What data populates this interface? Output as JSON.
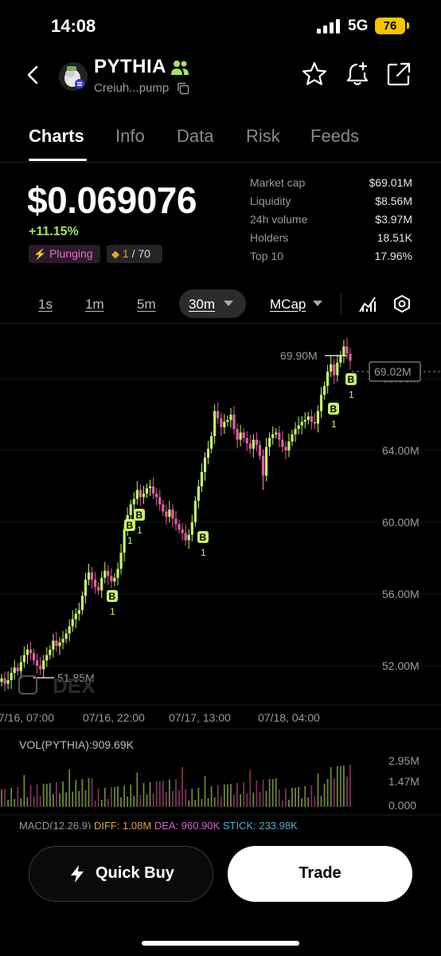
{
  "status_bar": {
    "time": "14:08",
    "network": "5G",
    "battery": "76"
  },
  "header": {
    "token_name": "PYTHIA",
    "token_address": "Creiuh...pump"
  },
  "tabs": [
    {
      "label": "Charts",
      "active": true
    },
    {
      "label": "Info",
      "active": false
    },
    {
      "label": "Data",
      "active": false
    },
    {
      "label": "Risk",
      "active": false
    },
    {
      "label": "Feeds",
      "active": false
    }
  ],
  "price": {
    "value": "$0.069076",
    "change": "+11.15%",
    "badge_trend": "Plunging",
    "holders_rank": "1",
    "holders_total": "/ 70"
  },
  "stats": [
    {
      "label": "Market cap",
      "value": "$69.01M"
    },
    {
      "label": "Liquidity",
      "value": "$8.56M"
    },
    {
      "label": "24h volume",
      "value": "$3.97M"
    },
    {
      "label": "Holders",
      "value": "18.51K"
    },
    {
      "label": "Top 10",
      "value": "17.96%"
    }
  ],
  "timeframes": [
    "1s",
    "1m",
    "5m",
    "30m"
  ],
  "active_timeframe": "30m",
  "metric_select": "MCap",
  "chart_data": {
    "type": "candlestick",
    "y_axis_ticks": [
      "64.00M",
      "60.00M",
      "56.00M",
      "52.00M"
    ],
    "y_axis_partial": "68.00M",
    "x_axis_ticks": [
      "7/16, 07:00",
      "07/16, 22:00",
      "07/17, 13:00",
      "07/18, 04:00"
    ],
    "ylim": [
      50.0,
      70.6
    ],
    "current_value_label": "69.02M",
    "high_label": "69.90M",
    "low_label": "51.85M",
    "watermark": "DEX",
    "buy_marker_letter": "B",
    "buy_marker_count": "1",
    "close": [
      51.3,
      51.0,
      51.2,
      51.6,
      51.9,
      51.7,
      52.2,
      52.6,
      52.9,
      52.7,
      52.3,
      52.0,
      51.8,
      52.3,
      52.6,
      52.9,
      53.4,
      53.1,
      53.3,
      53.5,
      53.8,
      54.2,
      54.6,
      54.9,
      55.1,
      55.9,
      56.8,
      57.2,
      56.8,
      56.4,
      56.2,
      56.9,
      57.3,
      57.0,
      56.7,
      56.9,
      57.4,
      58.3,
      59.6,
      60.4,
      61.0,
      61.3,
      61.8,
      61.4,
      61.6,
      61.9,
      62.0,
      61.6,
      61.4,
      61.0,
      60.6,
      60.3,
      60.7,
      60.2,
      59.9,
      59.6,
      59.4,
      59.0,
      59.3,
      60.0,
      61.2,
      62.0,
      62.8,
      63.6,
      64.1,
      64.8,
      66.2,
      65.8,
      65.3,
      65.6,
      65.7,
      66.0,
      65.2,
      64.6,
      65.0,
      64.7,
      64.4,
      64.1,
      64.6,
      64.3,
      63.7,
      62.6,
      64.2,
      64.7,
      64.9,
      65.0,
      64.6,
      64.2,
      64.0,
      64.5,
      64.9,
      65.2,
      65.4,
      65.6,
      65.7,
      65.9,
      65.6,
      65.5,
      66.2,
      67.1,
      67.6,
      68.4,
      68.8,
      68.2,
      68.9,
      69.3,
      69.8,
      69.4,
      69.0
    ],
    "volume_axis": [
      "2.95M",
      "1.47M",
      "0.000"
    ]
  },
  "indicators": {
    "vol_label": "VOL(PYTHIA):909.69K",
    "macd_label": "MACD(12,26,9)",
    "diff": "DIFF: 1.08M",
    "dea": "DEA: 960.90K",
    "stick": "STICK: 233.98K"
  },
  "actions": {
    "quick_buy": "Quick Buy",
    "trade": "Trade"
  },
  "colors": {
    "up": "#c8f26a",
    "down": "#e0609f",
    "accent_green": "#a8e063"
  }
}
